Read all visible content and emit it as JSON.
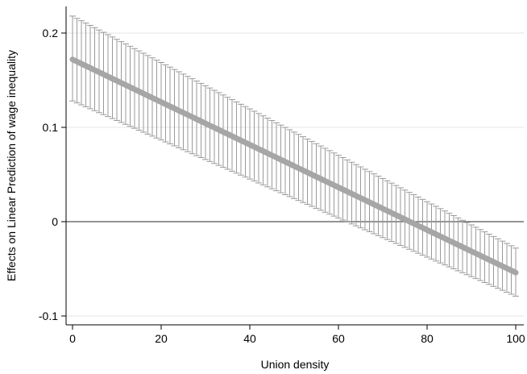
{
  "chart_data": {
    "type": "line",
    "title": "",
    "xlabel": "Union density",
    "ylabel": "Effects on Linear Prediction of wage inequality",
    "xlim": [
      0,
      100
    ],
    "ylim": [
      -0.1,
      0.2
    ],
    "x_ticks": [
      0,
      20,
      40,
      60,
      80,
      100
    ],
    "x_tick_labels": [
      "0",
      "20",
      "40",
      "60",
      "80",
      "100"
    ],
    "y_ticks": [
      -0.1,
      0,
      0.1,
      0.2
    ],
    "y_tick_labels": [
      "-0.1",
      "0",
      "0.1",
      "0.2"
    ],
    "grid": true,
    "reference_line_y": 0,
    "series": [
      {
        "x_start": 0,
        "x_end": 100,
        "x_step": 1,
        "estimate_start": 0.172,
        "estimate_end": -0.054,
        "ci_lower_start": 0.128,
        "ci_lower_end": -0.079,
        "ci_upper_start": 0.218,
        "ci_upper_end": -0.028
      }
    ],
    "colors": {
      "line": "#a6a6a6",
      "error_bars": "#9a9a9a",
      "grid": "#e6e6e6",
      "axis": "#000000",
      "zero_line": "#555555"
    }
  }
}
